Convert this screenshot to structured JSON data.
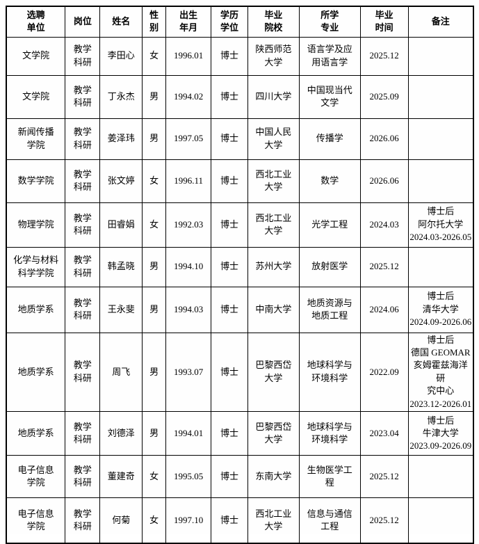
{
  "colors": {
    "border": "#000000",
    "text": "#000000",
    "background": "#ffffff"
  },
  "table": {
    "columns": [
      {
        "key": "unit",
        "label": "选聘\n单位"
      },
      {
        "key": "post",
        "label": "岗位"
      },
      {
        "key": "name",
        "label": "姓名"
      },
      {
        "key": "gender",
        "label": "性\n别"
      },
      {
        "key": "birth",
        "label": "出生\n年月"
      },
      {
        "key": "degree",
        "label": "学历\n学位"
      },
      {
        "key": "school",
        "label": "毕业\n院校"
      },
      {
        "key": "major",
        "label": "所学\n专业"
      },
      {
        "key": "grad",
        "label": "毕业\n时间"
      },
      {
        "key": "remark",
        "label": "备注"
      }
    ],
    "rows": [
      {
        "cells": [
          "文学院",
          "教学\n科研",
          "李田心",
          "女",
          "1996.01",
          "博士",
          "陕西师范\n大学",
          "语言学及应\n用语言学",
          "2025.12",
          ""
        ]
      },
      {
        "cells": [
          "文学院",
          "教学\n科研",
          "丁永杰",
          "男",
          "1994.02",
          "博士",
          "四川大学",
          "中国现当代\n文学",
          "2025.09",
          ""
        ]
      },
      {
        "cells": [
          "新闻传播\n学院",
          "教学\n科研",
          "姜泽玮",
          "男",
          "1997.05",
          "博士",
          "中国人民\n大学",
          "传播学",
          "2026.06",
          ""
        ]
      },
      {
        "cells": [
          "数学学院",
          "教学\n科研",
          "张文婷",
          "女",
          "1996.11",
          "博士",
          "西北工业\n大学",
          "数学",
          "2026.06",
          ""
        ]
      },
      {
        "cells": [
          "物理学院",
          "教学\n科研",
          "田睿娟",
          "女",
          "1992.03",
          "博士",
          "西北工业\n大学",
          "光学工程",
          "2024.03",
          "博士后\n阿尔托大学\n2024.03-2026.05"
        ]
      },
      {
        "cells": [
          "化学与材料\n科学学院",
          "教学\n科研",
          "韩孟晓",
          "男",
          "1994.10",
          "博士",
          "苏州大学",
          "放射医学",
          "2025.12",
          ""
        ]
      },
      {
        "cells": [
          "地质学系",
          "教学\n科研",
          "王永斐",
          "男",
          "1994.03",
          "博士",
          "中南大学",
          "地质资源与\n地质工程",
          "2024.06",
          "博士后\n清华大学\n2024.09-2026.06"
        ]
      },
      {
        "cells": [
          "地质学系",
          "教学\n科研",
          "周飞",
          "男",
          "1993.07",
          "博士",
          "巴黎西岱\n大学",
          "地球科学与\n环境科学",
          "2022.09",
          "博士后\n德国 GEOMAR\n亥姆霍兹海洋研\n究中心\n2023.12-2026.01"
        ]
      },
      {
        "cells": [
          "地质学系",
          "教学\n科研",
          "刘德泽",
          "男",
          "1994.01",
          "博士",
          "巴黎西岱\n大学",
          "地球科学与\n环境科学",
          "2023.04",
          "博士后\n牛津大学\n2023.09-2026.09"
        ]
      },
      {
        "cells": [
          "电子信息\n学院",
          "教学\n科研",
          "董建奇",
          "女",
          "1995.05",
          "博士",
          "东南大学",
          "生物医学工\n程",
          "2025.12",
          ""
        ]
      },
      {
        "cells": [
          "电子信息\n学院",
          "教学\n科研",
          "何菊",
          "女",
          "1997.10",
          "博士",
          "西北工业\n大学",
          "信息与通信\n工程",
          "2025.12",
          ""
        ]
      }
    ]
  }
}
